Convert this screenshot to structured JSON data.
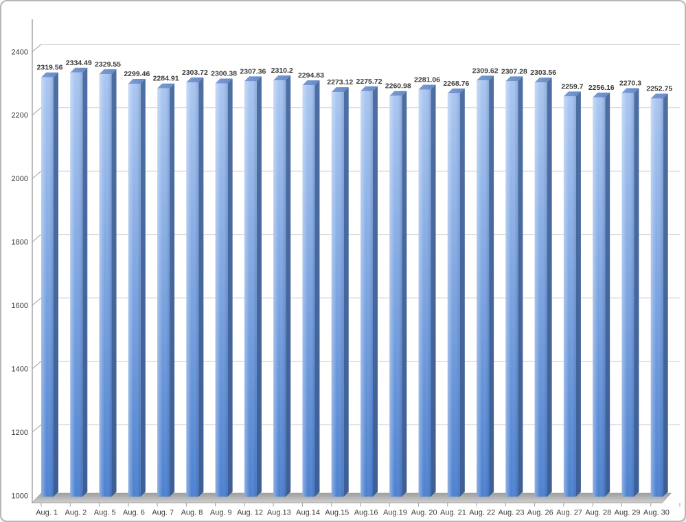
{
  "window": {
    "title": "",
    "background": "#ffffff",
    "frame_border_color": "#b6b6b6"
  },
  "chart_data": {
    "type": "bar",
    "style": "3d-column",
    "title": "",
    "xlabel": "",
    "ylabel": "",
    "legend": "none",
    "grid": "horizontal gridlines every 200, back wall",
    "ylim": [
      1000,
      2400
    ],
    "y_ticks": [
      1000,
      1200,
      1400,
      1600,
      1800,
      2000,
      2200,
      2400
    ],
    "categories": [
      "Aug. 1",
      "Aug. 2",
      "Aug. 5",
      "Aug. 6",
      "Aug. 7",
      "Aug. 8",
      "Aug. 9",
      "Aug. 12",
      "Aug.13",
      "Aug.14",
      "Aug.15",
      "Aug.16",
      "Aug.19",
      "Aug. 20",
      "Aug. 21",
      "Aug. 22",
      "Aug. 23",
      "Aug. 26",
      "Aug. 27",
      "Aug. 28",
      "Aug. 29",
      "Aug. 30"
    ],
    "values": [
      2319.56,
      2334.49,
      2329.55,
      2299.46,
      2284.91,
      2303.72,
      2300.38,
      2307.36,
      2310.2,
      2294.83,
      2273.12,
      2275.72,
      2260.98,
      2281.06,
      2268.76,
      2309.62,
      2307.28,
      2303.56,
      2259.7,
      2256.16,
      2270.3,
      2252.75
    ],
    "data_labels_shown": true,
    "colors": {
      "bar_front_top": "#a9c6f1",
      "bar_front_bottom": "#4b80d0",
      "bar_side_top": "#4e6fa3",
      "bar_side_bottom": "#3e5f95",
      "bar_top_face_light": "#7b9dd6",
      "bar_top_face_dark": "#6589c4",
      "gridline": "#c6c6c6",
      "axis_line": "#9f9f9f",
      "floor_back": "#9e9e9e",
      "floor_front": "#d0d0d0",
      "label_text": "#3a3a3a"
    }
  }
}
